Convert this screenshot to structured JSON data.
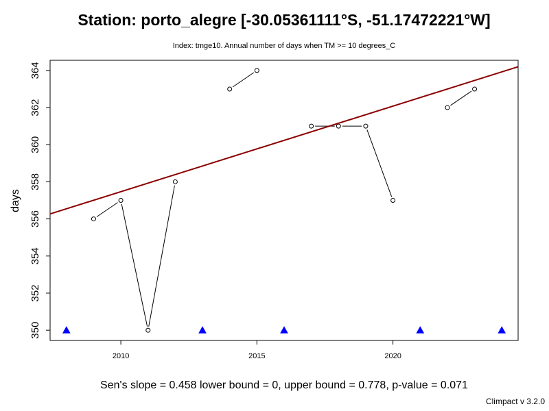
{
  "chart_data": {
    "type": "line",
    "title": "Station: porto_alegre [-30.05361111°S, -51.17472221°W]",
    "subtitle": "Index: tmge10. Annual number of days when TM >= 10 degrees_C",
    "xlabel": "",
    "ylabel": "days",
    "xlim": [
      2007.4,
      2024.6
    ],
    "ylim": [
      349.45,
      364.55
    ],
    "x_ticks": [
      2010,
      2015,
      2020
    ],
    "y_ticks": [
      350,
      352,
      354,
      356,
      358,
      360,
      362,
      364
    ],
    "grid": false,
    "series": [
      {
        "x": [
          2009,
          2010,
          2011,
          2012,
          2014,
          2015,
          2017,
          2018,
          2019,
          2020,
          2022,
          2023
        ],
        "values": [
          356,
          357,
          350,
          358,
          363,
          364,
          361,
          361,
          361,
          357,
          362,
          363
        ],
        "segments": [
          [
            2009,
            2010,
            2011,
            2012
          ],
          [
            2014,
            2015
          ],
          [
            2017,
            2018,
            2019,
            2020
          ],
          [
            2022,
            2023
          ]
        ],
        "color": "#000000"
      }
    ],
    "missing_years": [
      2008,
      2013,
      2016,
      2021,
      2024
    ],
    "missing_marker_value": 350,
    "missing_marker_color": "#0000ff",
    "trend": {
      "start": [
        2007.4,
        356.27
      ],
      "end": [
        2024.6,
        364.2
      ],
      "color": "#8b0000"
    }
  },
  "footer": {
    "stats": "Sen's slope = 0.458   lower bound = 0,   upper bound = 0.778,   p-value = 0.071",
    "credit": "Climpact v 3.2.0"
  }
}
